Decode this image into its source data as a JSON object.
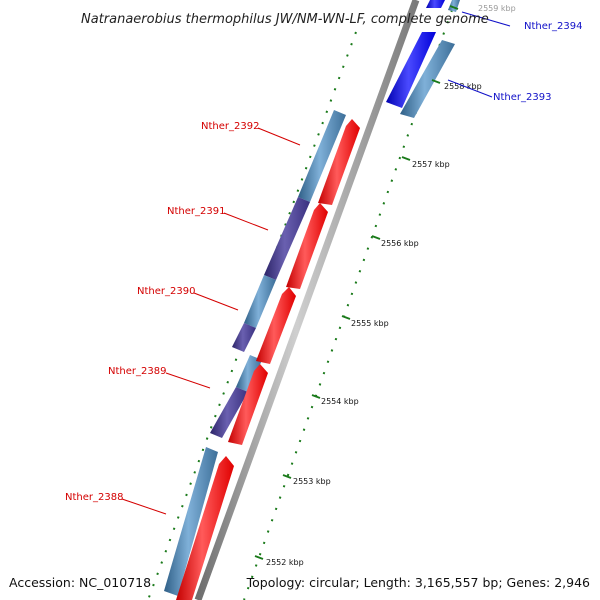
{
  "title": "Natranaerobius thermophilus JW/NM-WN-LF, complete genome",
  "footer": {
    "accession": "Accession: NC_010718",
    "summary": "Topology: circular; Length: 3,165,557 bp; Genes: 2,946"
  },
  "kbp_labels": [
    "2559 kbp",
    "2558 kbp",
    "2557 kbp",
    "2556 kbp",
    "2555 kbp",
    "2554 kbp",
    "2553 kbp",
    "2552 kbp"
  ],
  "gene_labels": [
    {
      "name": "Nther_2394",
      "strand": "reverse",
      "color": "#1010c8"
    },
    {
      "name": "Nther_2393",
      "strand": "reverse",
      "color": "#1010c8"
    },
    {
      "name": "Nther_2392",
      "strand": "forward",
      "color": "#d40000"
    },
    {
      "name": "Nther_2391",
      "strand": "forward",
      "color": "#d40000"
    },
    {
      "name": "Nther_2390",
      "strand": "forward",
      "color": "#d40000"
    },
    {
      "name": "Nther_2389",
      "strand": "forward",
      "color": "#d40000"
    },
    {
      "name": "Nther_2388",
      "strand": "forward",
      "color": "#d40000"
    }
  ],
  "colors": {
    "forward_cds": "#ff0000",
    "reverse_cds": "#0000ff",
    "gene_feature": "#4682b4",
    "overlap_feature": "#483d8b",
    "backbone": "#9a9a9a",
    "tick": "#1a7a1a"
  }
}
